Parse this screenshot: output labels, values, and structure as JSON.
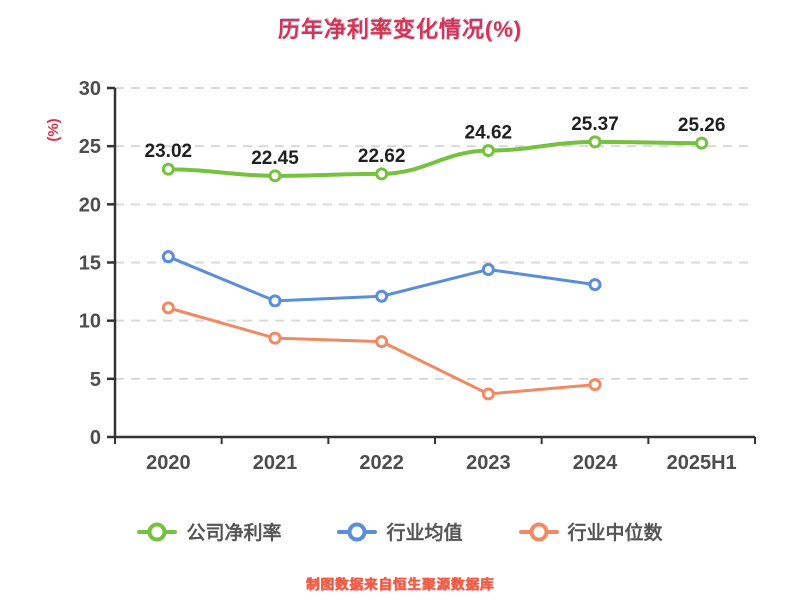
{
  "footer": "制图数据来自恒生聚源数据库",
  "chart_data": {
    "type": "line",
    "title": "历年净利率变化情况(%)",
    "ylabel": "(%)",
    "xlabel": "",
    "categories": [
      "2020",
      "2021",
      "2022",
      "2023",
      "2024",
      "2025H1"
    ],
    "ylim": [
      0,
      30
    ],
    "yticks": [
      0,
      5,
      10,
      15,
      20,
      25,
      30
    ],
    "grid": "horizontal-dashed",
    "legend_position": "bottom",
    "series": [
      {
        "name": "公司净利率",
        "color": "#76c13f",
        "smooth": true,
        "show_labels": true,
        "values": [
          23.02,
          22.45,
          22.62,
          24.62,
          25.37,
          25.26
        ],
        "labels": [
          "23.02",
          "22.45",
          "22.62",
          "24.62",
          "25.37",
          "25.26"
        ]
      },
      {
        "name": "行业均值",
        "color": "#5b8dd9",
        "smooth": false,
        "show_labels": false,
        "values": [
          15.5,
          11.7,
          12.1,
          14.4,
          13.1
        ]
      },
      {
        "name": "行业中位数",
        "color": "#f08a62",
        "smooth": false,
        "show_labels": false,
        "values": [
          11.1,
          8.5,
          8.2,
          3.7,
          4.5
        ]
      }
    ],
    "colors": {
      "title": "#d8344f",
      "axis": "#333333",
      "tick_label": "#4d4d4d",
      "grid": "#d9d9d9",
      "data_label": "#1f1f1f",
      "ylabel": "#e0314b",
      "footer": "#ef5b41"
    }
  }
}
